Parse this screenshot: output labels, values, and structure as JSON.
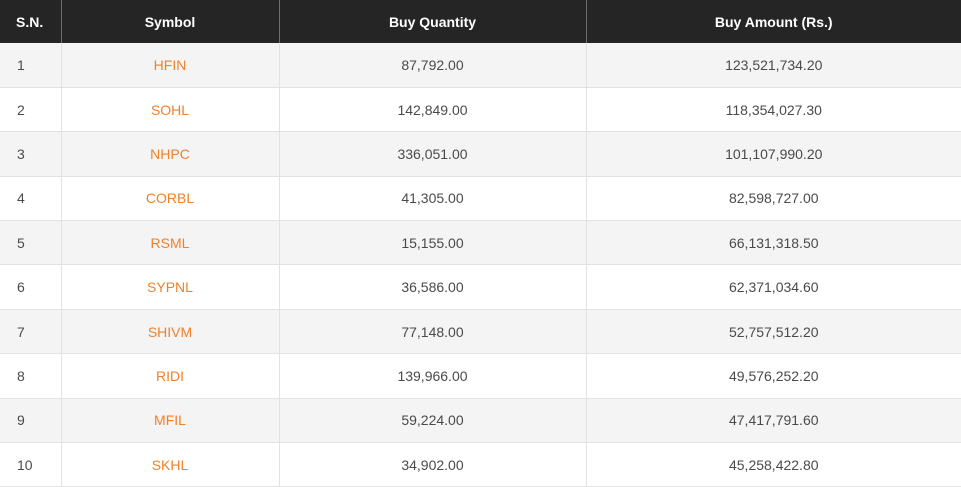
{
  "table": {
    "headers": [
      "S.N.",
      "Symbol",
      "Buy Quantity",
      "Buy Amount (Rs.)"
    ],
    "rows": [
      {
        "sn": "1",
        "symbol": "HFIN",
        "qty": "87,792.00",
        "amount": "123,521,734.20"
      },
      {
        "sn": "2",
        "symbol": "SOHL",
        "qty": "142,849.00",
        "amount": "118,354,027.30"
      },
      {
        "sn": "3",
        "symbol": "NHPC",
        "qty": "336,051.00",
        "amount": "101,107,990.20"
      },
      {
        "sn": "4",
        "symbol": "CORBL",
        "qty": "41,305.00",
        "amount": "82,598,727.00"
      },
      {
        "sn": "5",
        "symbol": "RSML",
        "qty": "15,155.00",
        "amount": "66,131,318.50"
      },
      {
        "sn": "6",
        "symbol": "SYPNL",
        "qty": "36,586.00",
        "amount": "62,371,034.60"
      },
      {
        "sn": "7",
        "symbol": "SHIVM",
        "qty": "77,148.00",
        "amount": "52,757,512.20"
      },
      {
        "sn": "8",
        "symbol": "RIDI",
        "qty": "139,966.00",
        "amount": "49,576,252.20"
      },
      {
        "sn": "9",
        "symbol": "MFIL",
        "qty": "59,224.00",
        "amount": "47,417,791.60"
      },
      {
        "sn": "10",
        "symbol": "SKHL",
        "qty": "34,902.00",
        "amount": "45,258,422.80"
      }
    ]
  },
  "colors": {
    "header_bg": "#252525",
    "header_text": "#ffffff",
    "symbol_link": "#f0812a",
    "row_alt_bg": "#f4f4f4",
    "body_text": "#4a4a4a"
  }
}
